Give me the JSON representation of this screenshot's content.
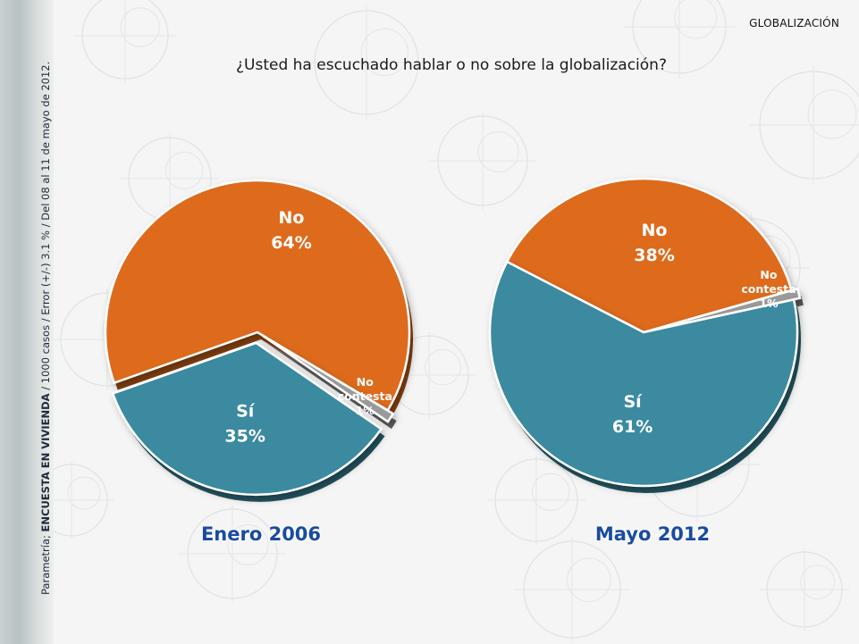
{
  "header": {
    "section": "GLOBALIZACIÓN"
  },
  "question": "¿Usted ha escuchado hablar o no sobre la globalización?",
  "side_note": {
    "prefix": "Parametría; ",
    "bold": "ENCUESTA EN VIVIENDA",
    "suffix": " / 1000 casos / Error (+/-) 3.1 % / Del 08 al 11 de mayo de 2012."
  },
  "colors": {
    "no": "#de6a1a",
    "si": "#3a8aa0",
    "no_contesta": "#9a9a9a",
    "caption": "#1a4ba0"
  },
  "chart_data": [
    {
      "type": "pie",
      "title": "Enero 2006",
      "slices": [
        {
          "label": "No",
          "value": 64,
          "value_label": "64%",
          "color": "#de6a1a"
        },
        {
          "label": "No contesta",
          "value": 1,
          "value_label": "1%",
          "color": "#9a9a9a"
        },
        {
          "label": "Sí",
          "value": 35,
          "value_label": "35%",
          "color": "#3a8aa0"
        }
      ]
    },
    {
      "type": "pie",
      "title": "Mayo 2012",
      "slices": [
        {
          "label": "No",
          "value": 38,
          "value_label": "38%",
          "color": "#de6a1a"
        },
        {
          "label": "No contesta",
          "value": 1,
          "value_label": "1%",
          "color": "#9a9a9a"
        },
        {
          "label": "Sí",
          "value": 61,
          "value_label": "61%",
          "color": "#3a8aa0"
        }
      ]
    }
  ]
}
